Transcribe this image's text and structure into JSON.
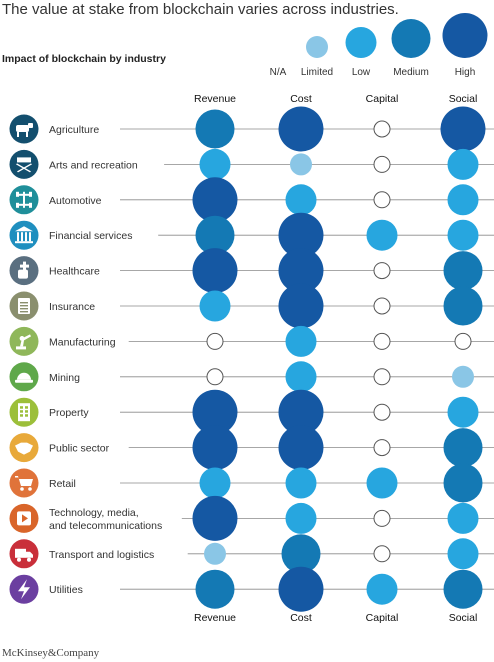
{
  "chart_data": {
    "type": "bubble-matrix",
    "title": "The value at stake from blockchain varies across industries.",
    "subtitle": "Impact of blockchain by industry",
    "legend": [
      "N/A",
      "Limited",
      "Low",
      "Medium",
      "High"
    ],
    "columns": [
      "Revenue",
      "Cost",
      "Capital",
      "Social"
    ],
    "rows": [
      {
        "label": [
          "Agriculture"
        ],
        "icon": "cow-icon",
        "icon_color": "#134f6e",
        "values": [
          "Medium",
          "High",
          "N/A",
          "High"
        ]
      },
      {
        "label": [
          "Arts and recreation"
        ],
        "icon": "director-chair-icon",
        "icon_color": "#134f6e",
        "values": [
          "Low",
          "Limited",
          "N/A",
          "Low"
        ]
      },
      {
        "label": [
          "Automotive"
        ],
        "icon": "car-chassis-icon",
        "icon_color": "#1f8f9a",
        "values": [
          "High",
          "Low",
          "N/A",
          "Low"
        ]
      },
      {
        "label": [
          "Financial services"
        ],
        "icon": "bank-icon",
        "icon_color": "#1f8fbf",
        "values": [
          "Medium",
          "High",
          "Low",
          "Low"
        ]
      },
      {
        "label": [
          "Healthcare"
        ],
        "icon": "medical-hand-icon",
        "icon_color": "#5a6f80",
        "values": [
          "High",
          "High",
          "N/A",
          "Medium"
        ]
      },
      {
        "label": [
          "Insurance"
        ],
        "icon": "document-icon",
        "icon_color": "#8a8f6e",
        "values": [
          "Low",
          "High",
          "N/A",
          "Medium"
        ]
      },
      {
        "label": [
          "Manufacturing"
        ],
        "icon": "robot-arm-icon",
        "icon_color": "#8fb75a",
        "values": [
          "N/A",
          "Low",
          "N/A",
          "N/A"
        ]
      },
      {
        "label": [
          "Mining"
        ],
        "icon": "hard-hat-icon",
        "icon_color": "#5fa84a",
        "values": [
          "N/A",
          "Low",
          "N/A",
          "Limited"
        ]
      },
      {
        "label": [
          "Property"
        ],
        "icon": "building-icon",
        "icon_color": "#9cbf3a",
        "values": [
          "High",
          "High",
          "N/A",
          "Low"
        ]
      },
      {
        "label": [
          "Public sector"
        ],
        "icon": "handshake-icon",
        "icon_color": "#e8a93a",
        "values": [
          "High",
          "High",
          "N/A",
          "Medium"
        ]
      },
      {
        "label": [
          "Retail"
        ],
        "icon": "shopping-cart-icon",
        "icon_color": "#e0733a",
        "values": [
          "Low",
          "Low",
          "Low",
          "Medium"
        ]
      },
      {
        "label": [
          "Technology, media,",
          "and telecommunications"
        ],
        "icon": "media-icon",
        "icon_color": "#d9652a",
        "values": [
          "High",
          "Low",
          "N/A",
          "Low"
        ]
      },
      {
        "label": [
          "Transport and logistics"
        ],
        "icon": "truck-icon",
        "icon_color": "#c92f3a",
        "values": [
          "Limited",
          "Medium",
          "N/A",
          "Low"
        ]
      },
      {
        "label": [
          "Utilities"
        ],
        "icon": "lightning-icon",
        "icon_color": "#6b3fa0",
        "values": [
          "Medium",
          "High",
          "Low",
          "Medium"
        ]
      }
    ],
    "level_colors": {
      "N/A": "#ffffff",
      "Limited": "#8ac6e6",
      "Low": "#27a6df",
      "Medium": "#1479b4",
      "High": "#1558a3"
    },
    "source": "McKinsey&Company"
  }
}
